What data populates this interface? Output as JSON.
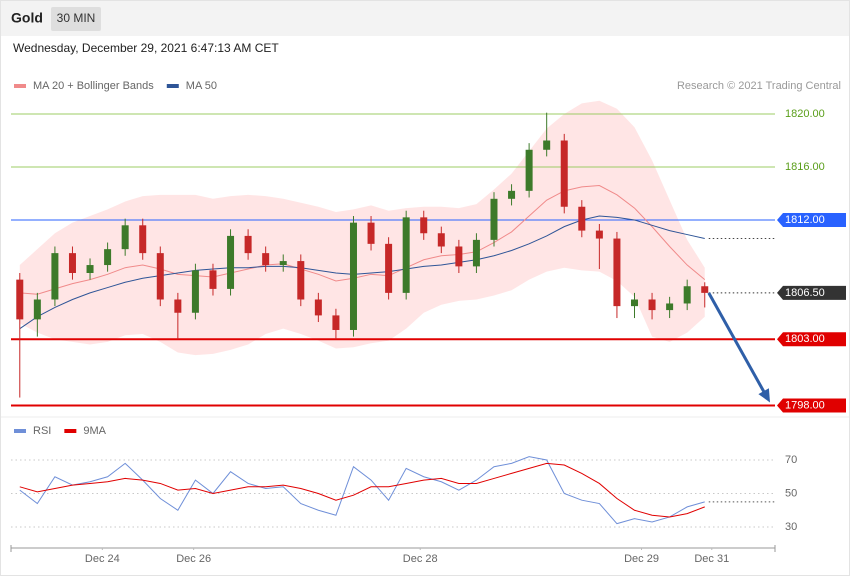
{
  "header": {
    "symbol": "Gold",
    "timeframe": "30 MIN",
    "timestamp": "Wednesday, December 29, 2021 6:47:13 AM CET"
  },
  "chart_data": [
    {
      "type": "candlestick",
      "credit": "Research © 2021 Trading Central",
      "x": [
        0,
        1,
        2,
        3,
        4,
        5,
        6,
        7,
        8,
        9,
        10,
        11,
        12,
        13,
        14,
        15,
        16,
        17,
        18,
        19,
        20,
        21,
        22,
        23,
        24,
        25,
        26,
        27,
        28,
        29,
        30,
        31,
        32,
        33,
        34,
        35,
        36,
        37,
        38,
        39
      ],
      "open": [
        1807.5,
        1804.5,
        1806.0,
        1809.5,
        1808.0,
        1808.6,
        1809.8,
        1811.6,
        1809.5,
        1806.0,
        1805.0,
        1808.2,
        1806.8,
        1810.8,
        1809.5,
        1808.6,
        1808.9,
        1806.0,
        1804.8,
        1803.7,
        1811.8,
        1810.2,
        1806.5,
        1812.2,
        1811.0,
        1810.0,
        1808.5,
        1810.5,
        1813.6,
        1814.2,
        1817.3,
        1818.0,
        1813.0,
        1811.2,
        1810.6,
        1805.5,
        1806.0,
        1805.2,
        1805.7,
        1807.0
      ],
      "high": [
        1808.0,
        1806.5,
        1810.0,
        1810.0,
        1809.1,
        1810.3,
        1812.1,
        1812.1,
        1810.0,
        1806.5,
        1808.7,
        1808.7,
        1811.3,
        1811.3,
        1810.0,
        1809.4,
        1809.4,
        1806.5,
        1805.3,
        1812.3,
        1812.3,
        1810.7,
        1812.7,
        1812.7,
        1811.5,
        1810.5,
        1811.0,
        1814.1,
        1814.7,
        1817.8,
        1820.1,
        1818.5,
        1813.5,
        1811.7,
        1811.1,
        1806.5,
        1806.5,
        1806.2,
        1807.5,
        1807.3
      ],
      "low": [
        1798.6,
        1803.2,
        1805.5,
        1807.5,
        1807.5,
        1808.1,
        1809.3,
        1809.0,
        1805.5,
        1803.0,
        1804.5,
        1806.3,
        1806.3,
        1809.0,
        1808.1,
        1808.1,
        1805.5,
        1804.3,
        1803.0,
        1803.2,
        1809.7,
        1806.0,
        1806.0,
        1810.5,
        1809.5,
        1808.0,
        1808.0,
        1810.0,
        1813.1,
        1813.7,
        1816.8,
        1812.5,
        1810.7,
        1808.3,
        1804.6,
        1804.6,
        1804.5,
        1804.6,
        1805.2,
        1805.4
      ],
      "close": [
        1804.5,
        1806.0,
        1809.5,
        1808.0,
        1808.6,
        1809.8,
        1811.6,
        1809.5,
        1806.0,
        1805.0,
        1808.2,
        1806.8,
        1810.8,
        1809.5,
        1808.6,
        1808.9,
        1806.0,
        1804.8,
        1803.7,
        1811.8,
        1810.2,
        1806.5,
        1812.2,
        1811.0,
        1810.0,
        1808.5,
        1810.5,
        1813.6,
        1814.2,
        1817.3,
        1818.0,
        1813.0,
        1811.2,
        1810.6,
        1805.5,
        1806.0,
        1805.2,
        1805.7,
        1807.0,
        1806.5
      ],
      "up_color": "#3d7a2a",
      "down_color": "#c62828",
      "series": [
        {
          "name": "MA 20 + Bollinger Bands",
          "color": "#f08a8a",
          "values": [
            1806.5,
            1806.4,
            1806.8,
            1807.2,
            1807.5,
            1807.9,
            1808.4,
            1808.6,
            1808.3,
            1807.9,
            1807.8,
            1807.7,
            1808.0,
            1808.3,
            1808.6,
            1808.7,
            1808.3,
            1807.9,
            1807.4,
            1807.6,
            1807.9,
            1807.8,
            1808.4,
            1809.0,
            1809.3,
            1809.4,
            1809.6,
            1810.3,
            1811.1,
            1812.3,
            1813.5,
            1814.2,
            1814.5,
            1814.6,
            1813.9,
            1812.9,
            1811.5,
            1810.0,
            1808.6,
            1807.5
          ]
        },
        {
          "name": "MA 50",
          "color": "#2f5597",
          "values": [
            1803.8,
            1804.7,
            1805.4,
            1806.0,
            1806.5,
            1806.9,
            1807.3,
            1807.6,
            1807.8,
            1808.0,
            1808.2,
            1808.3,
            1808.4,
            1808.4,
            1808.5,
            1808.5,
            1808.4,
            1808.2,
            1808.0,
            1807.9,
            1808.0,
            1808.1,
            1808.3,
            1808.5,
            1808.6,
            1808.8,
            1809.0,
            1809.3,
            1809.7,
            1810.2,
            1810.8,
            1811.5,
            1812.0,
            1812.3,
            1812.2,
            1812.0,
            1811.6,
            1811.2,
            1810.9,
            1810.6
          ]
        }
      ],
      "bands": {
        "color": "#ffdede",
        "upper": [
          1808.6,
          1809.8,
          1811.0,
          1811.8,
          1812.3,
          1812.8,
          1813.4,
          1813.8,
          1813.9,
          1813.9,
          1813.9,
          1813.6,
          1813.8,
          1813.9,
          1813.8,
          1813.6,
          1813.3,
          1813.0,
          1812.6,
          1812.8,
          1813.1,
          1812.7,
          1812.9,
          1813.0,
          1813.0,
          1812.9,
          1813.2,
          1814.3,
          1815.5,
          1817.2,
          1818.9,
          1820.0,
          1820.8,
          1821.0,
          1820.4,
          1819.0,
          1816.5,
          1813.5,
          1810.5,
          1808.4
        ],
        "lower": [
          1804.2,
          1803.5,
          1803.0,
          1802.8,
          1802.6,
          1802.8,
          1803.3,
          1803.4,
          1802.8,
          1802.0,
          1801.8,
          1801.9,
          1802.2,
          1802.6,
          1803.4,
          1803.8,
          1803.4,
          1802.9,
          1802.3,
          1802.4,
          1802.7,
          1802.9,
          1803.8,
          1805.0,
          1805.6,
          1805.9,
          1806.0,
          1806.3,
          1806.7,
          1807.5,
          1808.1,
          1808.4,
          1808.2,
          1808.1,
          1807.4,
          1806.2,
          1803.2,
          1802.8,
          1803.5,
          1804.7
        ]
      },
      "levels": [
        {
          "value": 1820,
          "label": "1820.00",
          "color": "#9ccc65",
          "text_color": "#5a9e1a",
          "boxed": false,
          "line": "solid",
          "line_width": 1
        },
        {
          "value": 1816,
          "label": "1816.00",
          "color": "#9ccc65",
          "text_color": "#5a9e1a",
          "boxed": false,
          "line": "solid",
          "line_width": 1
        },
        {
          "value": 1812,
          "label": "1812.00",
          "color": "#2962ff",
          "text_color": "#ffffff",
          "boxed": true,
          "line": "solid",
          "line_width": 1
        },
        {
          "value": 1806.5,
          "label": "1806.50",
          "color": "#333333",
          "text_color": "#ffffff",
          "boxed": true,
          "line": "dotted",
          "line_width": 1
        },
        {
          "value": 1803,
          "label": "1803.00",
          "color": "#e00000",
          "text_color": "#ffffff",
          "boxed": true,
          "line": "solid",
          "line_width": 2
        },
        {
          "value": 1798,
          "label": "1798.00",
          "color": "#e00000",
          "text_color": "#ffffff",
          "boxed": true,
          "line": "solid",
          "line_width": 2
        }
      ],
      "forecast_color": "#2f5fa8",
      "xlim": [
        -0.5,
        43
      ],
      "ylim": [
        1797.5,
        1821.5
      ]
    },
    {
      "type": "line",
      "series": [
        {
          "name": "RSI",
          "color": "#6f8fd8",
          "values": [
            52,
            44,
            60,
            55,
            57,
            60,
            68,
            58,
            47,
            40,
            58,
            50,
            63,
            56,
            53,
            54,
            44,
            40,
            37,
            66,
            58,
            46,
            65,
            60,
            57,
            52,
            58,
            66,
            68,
            72,
            70,
            50,
            46,
            44,
            32,
            35,
            33,
            36,
            42,
            45
          ]
        },
        {
          "name": "9MA",
          "color": "#e00000",
          "values": [
            54,
            51,
            53,
            55,
            56,
            57,
            59,
            58,
            56,
            52,
            53,
            50,
            52,
            54,
            54,
            55,
            53,
            50,
            46,
            49,
            54,
            54,
            56,
            58,
            59,
            56,
            56,
            59,
            62,
            65,
            68,
            67,
            62,
            56,
            47,
            40,
            37,
            36,
            38,
            42
          ]
        }
      ],
      "ylim": [
        20,
        80
      ],
      "yticks": [
        70,
        50,
        30
      ],
      "grid": true,
      "xticks": [
        {
          "value": 4.7,
          "label": "Dec 24"
        },
        {
          "value": 9.9,
          "label": "Dec 26"
        },
        {
          "value": 22.8,
          "label": "Dec 28"
        },
        {
          "value": 35.4,
          "label": "Dec 29"
        },
        {
          "value": 39.4,
          "label": "Dec 31"
        }
      ]
    }
  ]
}
